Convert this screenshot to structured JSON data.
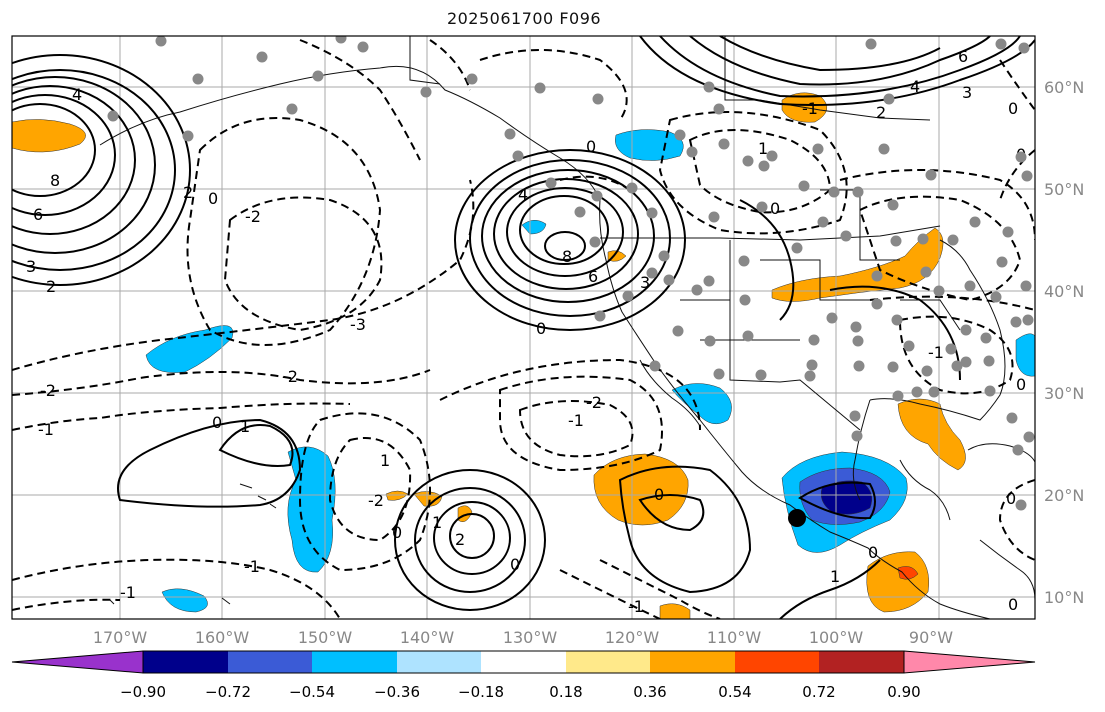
{
  "title": "2025061700 F096",
  "longitude_labels": [
    "170°W",
    "160°W",
    "150°W",
    "140°W",
    "130°W",
    "120°W",
    "110°W",
    "100°W",
    "90°W"
  ],
  "latitude_labels": [
    "60°N",
    "50°N",
    "40°N",
    "30°N",
    "20°N",
    "10°N"
  ],
  "colorbar": {
    "tick_labels": [
      "−0.90",
      "−0.72",
      "−0.54",
      "−0.36",
      "−0.18",
      "0.18",
      "0.36",
      "0.54",
      "0.72",
      "0.90"
    ],
    "colors": [
      "#9932cc",
      "#00008b",
      "#3b5bd6",
      "#00bfff",
      "#aee3ff",
      "#ffffff",
      "#ffe98a",
      "#ffa500",
      "#ff4500",
      "#b22222",
      "#ff88aa"
    ]
  },
  "contour_labels": {
    "nw_high": [
      "4",
      "8",
      "6",
      "3",
      "2"
    ],
    "pacific": [
      "2",
      "-2",
      "-1",
      "-3",
      "0",
      "0",
      "-1",
      "1"
    ],
    "coast_high": [
      "4",
      "8",
      "6",
      "3",
      "0",
      "0"
    ],
    "central": [
      "-2",
      "-2",
      "1",
      "-2",
      "0",
      "-1",
      "2",
      "1",
      "-2",
      "-1",
      "0",
      "0",
      "-1"
    ],
    "north": [
      "6",
      "4",
      "3",
      "2",
      "0",
      "0",
      "1",
      "-1"
    ],
    "east": [
      "0",
      "-1",
      "0",
      "0",
      "1",
      "0",
      "0"
    ]
  },
  "marker": "station-dot"
}
